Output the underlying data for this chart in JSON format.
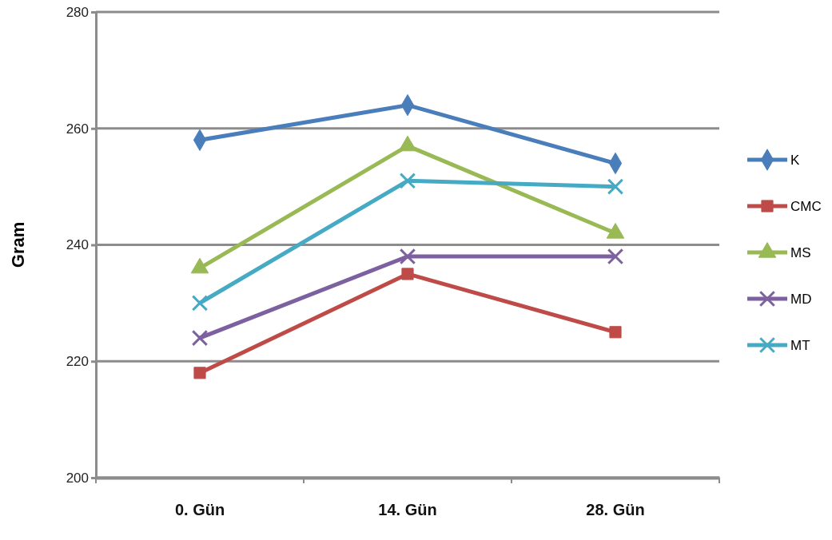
{
  "chart_data": {
    "type": "line",
    "ylabel": "Gram",
    "categories": [
      "0. Gün",
      "14. Gün",
      "28. Gün"
    ],
    "ylim": [
      200,
      280
    ],
    "yticks": [
      200,
      220,
      240,
      260,
      280
    ],
    "grid": "y",
    "legend": "right",
    "series": [
      {
        "name": "K",
        "color": "#4a7ebb",
        "marker": "diamond",
        "values": [
          258,
          264,
          254
        ]
      },
      {
        "name": "CMC",
        "color": "#be4b48",
        "marker": "square",
        "values": [
          218,
          235,
          225
        ]
      },
      {
        "name": "MS",
        "color": "#98b954",
        "marker": "triangle",
        "values": [
          236,
          257,
          242
        ]
      },
      {
        "name": "MD",
        "color": "#7d60a0",
        "marker": "cross",
        "values": [
          224,
          238,
          238
        ]
      },
      {
        "name": "MT",
        "color": "#46aac5",
        "marker": "cross",
        "values": [
          230,
          251,
          250
        ]
      }
    ]
  }
}
